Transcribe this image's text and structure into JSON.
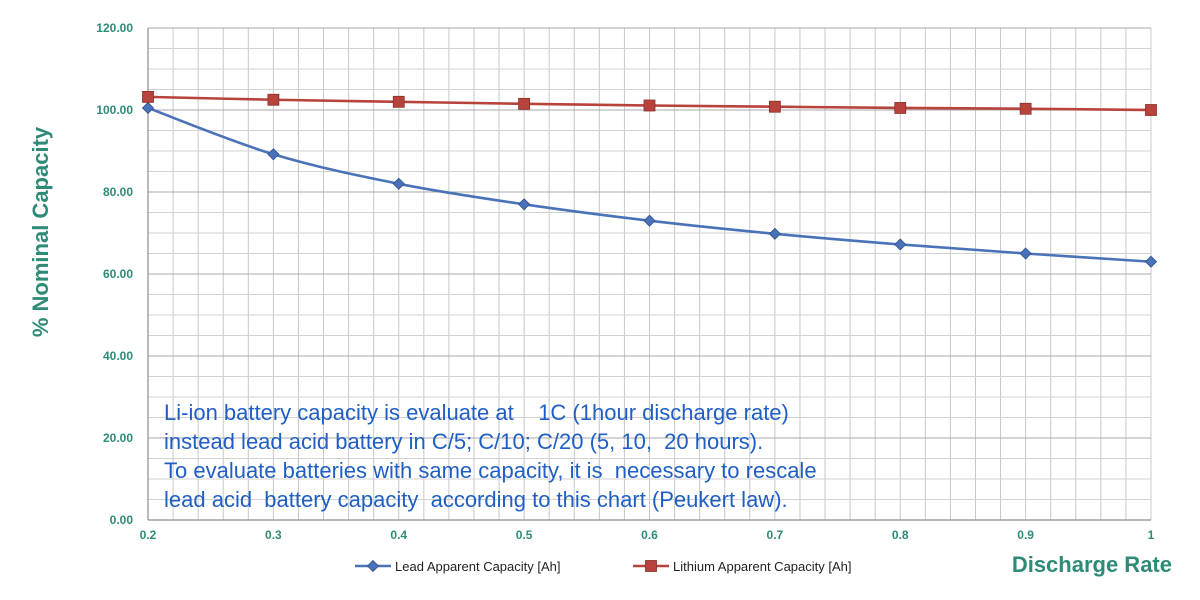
{
  "chart_data": {
    "type": "line",
    "title": "",
    "xlabel": "Discharge Rate",
    "ylabel": "% Nominal Capacity",
    "x": [
      0.2,
      0.3,
      0.4,
      0.5,
      0.6,
      0.7,
      0.8,
      0.9,
      1
    ],
    "x_tick_labels": [
      "0.2",
      "0.3",
      "0.4",
      "0.5",
      "0.6",
      "0.7",
      "0.8",
      "0.9",
      "1"
    ],
    "y_tick_labels": [
      "0.00",
      "20.00",
      "40.00",
      "60.00",
      "80.00",
      "100.00",
      "120.00"
    ],
    "ylim": [
      0,
      120
    ],
    "xlim": [
      0.2,
      1
    ],
    "grid": true,
    "legend_placement": "bottom",
    "series": [
      {
        "name": "Lead Apparent Capacity [Ah]",
        "color": "#4a72b8",
        "marker": "diamond",
        "values": [
          100.5,
          89.2,
          82.0,
          77.0,
          73.0,
          69.8,
          67.2,
          65.0,
          63.0
        ]
      },
      {
        "name": "Lithium Apparent Capacity [Ah]",
        "color": "#b8433d",
        "marker": "square",
        "values": [
          103.2,
          102.5,
          102.0,
          101.5,
          101.1,
          100.8,
          100.5,
          100.3,
          100.0
        ]
      }
    ],
    "annotation_lines": [
      "Li-ion battery capacity is evaluate at    1C (1hour discharge rate)",
      "instead lead acid battery in C/5; C/10; C/20 (5, 10,  20 hours).",
      "To evaluate batteries with same capacity, it is  necessary to rescale",
      "lead acid  battery capacity  according to this chart (Peukert law)."
    ]
  }
}
